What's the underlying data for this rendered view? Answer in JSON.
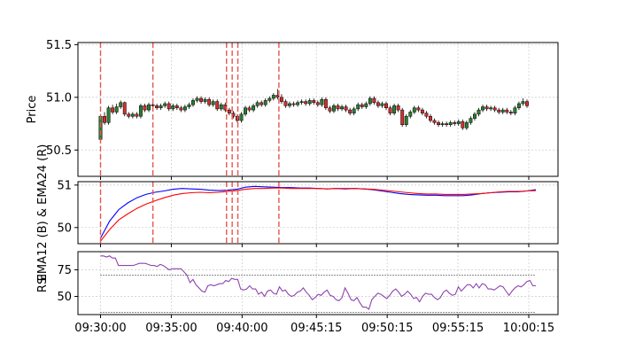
{
  "chart_data": [
    {
      "type": "candlestick",
      "ylabel": "Price",
      "ylim": [
        50.25,
        51.52
      ],
      "yticks": [
        "50.5",
        "51.0",
        "51.5"
      ],
      "grid": true,
      "colors": {
        "up": "#2e7d32",
        "down": "#d32f2f",
        "wick": "#000000",
        "event": "#e8554e"
      },
      "event_lines_minutes": [
        0,
        3.7,
        8.9,
        9.3,
        9.7,
        12.6
      ],
      "candles": [
        [
          50.6,
          50.82,
          50.58,
          50.84
        ],
        [
          50.82,
          50.76,
          50.74,
          50.86
        ],
        [
          50.76,
          50.9,
          50.74,
          50.92
        ],
        [
          50.9,
          50.86,
          50.84,
          50.93
        ],
        [
          50.86,
          50.91,
          50.84,
          50.94
        ],
        [
          50.91,
          50.95,
          50.89,
          50.97
        ],
        [
          50.95,
          50.84,
          50.82,
          50.96
        ],
        [
          50.84,
          50.82,
          50.8,
          50.86
        ],
        [
          50.82,
          50.84,
          50.8,
          50.86
        ],
        [
          50.84,
          50.82,
          50.8,
          50.86
        ],
        [
          50.82,
          50.92,
          50.8,
          50.94
        ],
        [
          50.92,
          50.88,
          50.86,
          50.94
        ],
        [
          50.88,
          50.93,
          50.86,
          50.95
        ],
        [
          50.93,
          50.92,
          50.9,
          50.95
        ],
        [
          50.92,
          50.9,
          50.88,
          50.94
        ],
        [
          50.9,
          50.92,
          50.88,
          50.94
        ],
        [
          50.92,
          50.94,
          50.9,
          50.96
        ],
        [
          50.94,
          50.89,
          50.87,
          50.96
        ],
        [
          50.89,
          50.92,
          50.87,
          50.94
        ],
        [
          50.92,
          50.9,
          50.88,
          50.94
        ],
        [
          50.9,
          50.88,
          50.86,
          50.92
        ],
        [
          50.88,
          50.91,
          50.86,
          50.93
        ],
        [
          50.91,
          50.93,
          50.89,
          50.95
        ],
        [
          50.93,
          50.97,
          50.91,
          50.99
        ],
        [
          50.97,
          50.99,
          50.95,
          51.01
        ],
        [
          50.99,
          50.96,
          50.94,
          51.01
        ],
        [
          50.96,
          50.98,
          50.94,
          51.0
        ],
        [
          50.98,
          50.93,
          50.91,
          51.0
        ],
        [
          50.93,
          50.96,
          50.91,
          50.98
        ],
        [
          50.96,
          50.89,
          50.87,
          50.98
        ],
        [
          50.89,
          50.93,
          50.87,
          50.95
        ],
        [
          50.93,
          50.88,
          50.86,
          50.95
        ],
        [
          50.88,
          50.85,
          50.83,
          50.9
        ],
        [
          50.85,
          50.82,
          50.8,
          50.87
        ],
        [
          50.82,
          50.78,
          50.76,
          50.84
        ],
        [
          50.78,
          50.84,
          50.76,
          50.86
        ],
        [
          50.84,
          50.9,
          50.82,
          50.92
        ],
        [
          50.9,
          50.88,
          50.86,
          50.92
        ],
        [
          50.88,
          50.92,
          50.86,
          50.94
        ],
        [
          50.92,
          50.95,
          50.9,
          50.97
        ],
        [
          50.95,
          50.93,
          50.91,
          50.97
        ],
        [
          50.93,
          50.97,
          50.91,
          50.99
        ],
        [
          50.97,
          50.99,
          50.95,
          51.01
        ],
        [
          50.99,
          51.02,
          50.97,
          51.04
        ],
        [
          51.02,
          51.0,
          50.98,
          51.08
        ],
        [
          51.0,
          50.96,
          50.94,
          51.03
        ],
        [
          50.96,
          50.92,
          50.9,
          50.98
        ],
        [
          50.92,
          50.94,
          50.9,
          50.96
        ],
        [
          50.94,
          50.93,
          50.91,
          50.96
        ],
        [
          50.93,
          50.95,
          50.91,
          50.97
        ],
        [
          50.95,
          50.96,
          50.93,
          50.98
        ],
        [
          50.96,
          50.94,
          50.92,
          50.98
        ],
        [
          50.94,
          50.97,
          50.92,
          50.99
        ],
        [
          50.97,
          50.95,
          50.93,
          50.99
        ],
        [
          50.95,
          50.93,
          50.91,
          50.97
        ],
        [
          50.93,
          50.98,
          50.91,
          51.0
        ],
        [
          50.98,
          50.9,
          50.88,
          51.0
        ],
        [
          50.9,
          50.87,
          50.85,
          50.92
        ],
        [
          50.87,
          50.92,
          50.85,
          50.94
        ],
        [
          50.92,
          50.89,
          50.87,
          50.94
        ],
        [
          50.89,
          50.91,
          50.87,
          50.93
        ],
        [
          50.91,
          50.88,
          50.86,
          50.93
        ],
        [
          50.88,
          50.85,
          50.83,
          50.9
        ],
        [
          50.85,
          50.89,
          50.83,
          50.91
        ],
        [
          50.89,
          50.93,
          50.87,
          50.95
        ],
        [
          50.93,
          50.91,
          50.89,
          50.95
        ],
        [
          50.91,
          50.94,
          50.89,
          50.96
        ],
        [
          50.94,
          50.99,
          50.92,
          51.01
        ],
        [
          50.99,
          50.95,
          50.93,
          51.01
        ],
        [
          50.95,
          50.92,
          50.9,
          50.97
        ],
        [
          50.92,
          50.94,
          50.9,
          50.96
        ],
        [
          50.94,
          50.9,
          50.88,
          50.96
        ],
        [
          50.9,
          50.85,
          50.83,
          50.92
        ],
        [
          50.85,
          50.92,
          50.83,
          50.94
        ],
        [
          50.92,
          50.88,
          50.86,
          50.94
        ],
        [
          50.88,
          50.74,
          50.72,
          50.9
        ],
        [
          50.74,
          50.82,
          50.72,
          50.84
        ],
        [
          50.82,
          50.86,
          50.8,
          50.88
        ],
        [
          50.86,
          50.9,
          50.84,
          50.92
        ],
        [
          50.9,
          50.88,
          50.86,
          50.92
        ],
        [
          50.88,
          50.85,
          50.83,
          50.9
        ],
        [
          50.85,
          50.82,
          50.8,
          50.87
        ],
        [
          50.82,
          50.78,
          50.76,
          50.84
        ],
        [
          50.78,
          50.76,
          50.74,
          50.8
        ],
        [
          50.76,
          50.74,
          50.72,
          50.78
        ],
        [
          50.74,
          50.75,
          50.72,
          50.77
        ],
        [
          50.75,
          50.74,
          50.72,
          50.77
        ],
        [
          50.74,
          50.76,
          50.72,
          50.78
        ],
        [
          50.76,
          50.75,
          50.73,
          50.78
        ],
        [
          50.75,
          50.77,
          50.73,
          50.79
        ],
        [
          50.77,
          50.71,
          50.69,
          50.79
        ],
        [
          50.71,
          50.76,
          50.69,
          50.78
        ],
        [
          50.76,
          50.8,
          50.74,
          50.82
        ],
        [
          50.8,
          50.84,
          50.78,
          50.86
        ],
        [
          50.84,
          50.88,
          50.82,
          50.9
        ],
        [
          50.88,
          50.91,
          50.86,
          50.93
        ],
        [
          50.91,
          50.89,
          50.87,
          50.93
        ],
        [
          50.89,
          50.9,
          50.87,
          50.92
        ],
        [
          50.9,
          50.88,
          50.86,
          50.92
        ],
        [
          50.88,
          50.86,
          50.84,
          50.9
        ],
        [
          50.86,
          50.88,
          50.84,
          50.9
        ],
        [
          50.88,
          50.86,
          50.84,
          50.9
        ],
        [
          50.86,
          50.85,
          50.83,
          50.88
        ],
        [
          50.85,
          50.9,
          50.83,
          50.92
        ],
        [
          50.9,
          50.94,
          50.88,
          50.96
        ],
        [
          50.94,
          50.96,
          50.92,
          50.99
        ],
        [
          50.96,
          50.92,
          50.9,
          50.98
        ]
      ]
    },
    {
      "type": "line",
      "ylabel": "EMA12 (B) & EMA24 (R)",
      "ylim": [
        49.62,
        51.08
      ],
      "yticks": [
        "50",
        "51"
      ],
      "grid": true,
      "event_lines_minutes": [
        0,
        3.7,
        8.9,
        9.3,
        9.7,
        12.6
      ],
      "series": [
        {
          "color": "#0000ff",
          "points": [
            [
              0,
              49.75
            ],
            [
              1,
              50.15
            ],
            [
              2,
              50.42
            ],
            [
              3,
              50.58
            ],
            [
              4,
              50.7
            ],
            [
              5,
              50.78
            ],
            [
              6,
              50.83
            ],
            [
              7,
              50.86
            ],
            [
              8,
              50.9
            ],
            [
              9,
              50.92
            ],
            [
              10,
              50.91
            ],
            [
              11,
              50.9
            ],
            [
              12,
              50.88
            ],
            [
              13,
              50.87
            ],
            [
              14,
              50.88
            ],
            [
              15,
              50.9
            ],
            [
              16,
              50.95
            ],
            [
              17,
              50.97
            ],
            [
              18,
              50.96
            ],
            [
              19,
              50.95
            ],
            [
              20,
              50.94
            ],
            [
              21,
              50.94
            ],
            [
              22,
              50.93
            ],
            [
              23,
              50.93
            ],
            [
              24,
              50.92
            ],
            [
              25,
              50.91
            ],
            [
              26,
              50.92
            ],
            [
              27,
              50.91
            ],
            [
              28,
              50.92
            ],
            [
              29,
              50.91
            ],
            [
              30,
              50.89
            ],
            [
              31,
              50.86
            ],
            [
              32,
              50.83
            ],
            [
              33,
              50.8
            ],
            [
              34,
              50.78
            ],
            [
              35,
              50.77
            ],
            [
              36,
              50.76
            ],
            [
              37,
              50.76
            ],
            [
              38,
              50.75
            ],
            [
              39,
              50.75
            ],
            [
              40,
              50.75
            ],
            [
              41,
              50.77
            ],
            [
              42,
              50.8
            ],
            [
              43,
              50.82
            ],
            [
              44,
              50.83
            ],
            [
              45,
              50.84
            ],
            [
              46,
              50.84
            ],
            [
              47,
              50.86
            ],
            [
              48,
              50.89
            ]
          ]
        },
        {
          "color": "#ff0000",
          "points": [
            [
              0,
              49.68
            ],
            [
              1,
              49.95
            ],
            [
              2,
              50.18
            ],
            [
              3,
              50.32
            ],
            [
              4,
              50.45
            ],
            [
              5,
              50.55
            ],
            [
              6,
              50.63
            ],
            [
              7,
              50.7
            ],
            [
              8,
              50.76
            ],
            [
              9,
              50.8
            ],
            [
              10,
              50.82
            ],
            [
              11,
              50.83
            ],
            [
              12,
              50.82
            ],
            [
              13,
              50.83
            ],
            [
              14,
              50.85
            ],
            [
              15,
              50.87
            ],
            [
              16,
              50.9
            ],
            [
              17,
              50.92
            ],
            [
              18,
              50.92
            ],
            [
              19,
              50.93
            ],
            [
              20,
              50.93
            ],
            [
              21,
              50.92
            ],
            [
              22,
              50.92
            ],
            [
              23,
              50.92
            ],
            [
              24,
              50.92
            ],
            [
              25,
              50.91
            ],
            [
              26,
              50.92
            ],
            [
              27,
              50.92
            ],
            [
              28,
              50.92
            ],
            [
              29,
              50.91
            ],
            [
              30,
              50.9
            ],
            [
              31,
              50.88
            ],
            [
              32,
              50.86
            ],
            [
              33,
              50.84
            ],
            [
              34,
              50.82
            ],
            [
              35,
              50.8
            ],
            [
              36,
              50.79
            ],
            [
              37,
              50.79
            ],
            [
              38,
              50.78
            ],
            [
              39,
              50.78
            ],
            [
              40,
              50.78
            ],
            [
              41,
              50.79
            ],
            [
              42,
              50.8
            ],
            [
              43,
              50.82
            ],
            [
              44,
              50.84
            ],
            [
              45,
              50.85
            ],
            [
              46,
              50.85
            ],
            [
              47,
              50.86
            ],
            [
              48,
              50.87
            ]
          ]
        }
      ]
    },
    {
      "type": "line",
      "ylabel": "RSI",
      "ylim": [
        33,
        92
      ],
      "yticks": [
        "50",
        "75"
      ],
      "grid": true,
      "reference_lines": [
        70,
        35
      ],
      "x_tick_labels": [
        "09:30:00",
        "09:35:00",
        "09:40:00",
        "09:45:15",
        "09:50:15",
        "09:55:15",
        "10:00:15"
      ],
      "series": [
        {
          "color": "#8e44ad",
          "values": [
            88,
            88,
            87,
            88,
            86,
            86,
            79,
            79,
            79,
            79,
            79,
            79,
            80,
            81,
            81,
            81,
            80,
            79,
            79,
            78,
            80,
            79,
            77,
            75,
            76,
            76,
            76,
            76,
            73,
            70,
            63,
            66,
            61,
            58,
            55,
            54,
            60,
            61,
            60,
            61,
            62,
            62,
            65,
            64,
            67,
            66,
            66,
            57,
            56,
            57,
            60,
            57,
            57,
            52,
            54,
            50,
            55,
            56,
            53,
            52,
            59,
            55,
            56,
            52,
            50,
            51,
            54,
            55,
            58,
            54,
            51,
            47,
            49,
            52,
            51,
            54,
            56,
            51,
            50,
            47,
            46,
            49,
            58,
            53,
            47,
            46,
            49,
            44,
            40,
            40,
            38,
            47,
            50,
            53,
            52,
            50,
            48,
            51,
            55,
            57,
            54,
            50,
            52,
            55,
            52,
            48,
            49,
            45,
            50,
            53,
            52,
            52,
            49,
            47,
            49,
            54,
            56,
            53,
            51,
            52,
            59,
            55,
            58,
            61,
            61,
            58,
            62,
            58,
            62,
            61,
            57,
            57,
            56,
            58,
            60,
            59,
            55,
            51,
            55,
            58,
            60,
            59,
            61,
            64,
            65,
            60,
            60
          ]
        }
      ]
    }
  ]
}
